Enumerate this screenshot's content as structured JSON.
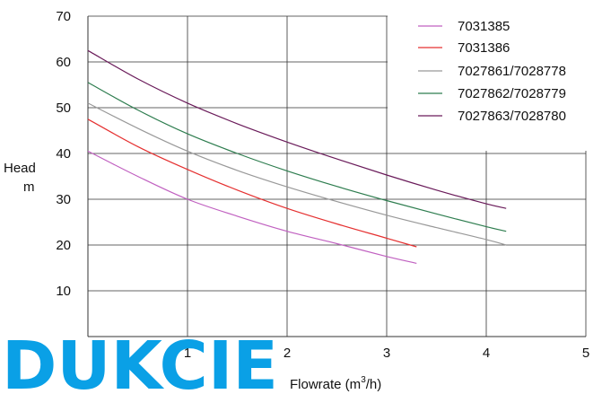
{
  "chart_data": {
    "type": "line",
    "xlabel": "Flowrate (m",
    "xlabel_sup": "3",
    "xlabel_tail": "/h)",
    "ylabel": "Head",
    "yunit": "m",
    "xlim": [
      0,
      5
    ],
    "ylim": [
      0,
      70
    ],
    "x_ticks": [
      1,
      2,
      3,
      4,
      5
    ],
    "y_ticks": [
      10,
      20,
      30,
      40,
      50,
      60,
      70
    ],
    "grid": true,
    "legend_position": "top-right",
    "series": [
      {
        "name": "7031385",
        "color": "#c060c0",
        "x": [
          0,
          0.5,
          1.0,
          1.5,
          2.0,
          2.5,
          3.0,
          3.3
        ],
        "y": [
          40.5,
          35.0,
          30.0,
          26.3,
          23.0,
          20.3,
          17.5,
          16.0
        ]
      },
      {
        "name": "7031386",
        "color": "#e53030",
        "x": [
          0,
          0.5,
          1.0,
          1.5,
          2.0,
          2.5,
          3.0,
          3.3
        ],
        "y": [
          47.5,
          41.5,
          36.5,
          32.0,
          28.0,
          24.6,
          21.5,
          19.6
        ]
      },
      {
        "name": "7027861/7028778",
        "color": "#999999",
        "x": [
          0,
          0.5,
          1.0,
          1.5,
          2.0,
          2.5,
          3.0,
          3.5,
          4.0,
          4.2
        ],
        "y": [
          51.0,
          45.5,
          40.5,
          36.3,
          32.7,
          29.5,
          26.5,
          23.8,
          21.2,
          20.0
        ]
      },
      {
        "name": "7027862/7028779",
        "color": "#2e7d4f",
        "x": [
          0,
          0.5,
          1.0,
          1.5,
          2.0,
          2.5,
          3.0,
          3.5,
          4.0,
          4.2
        ],
        "y": [
          55.5,
          49.5,
          44.3,
          40.0,
          36.2,
          32.8,
          29.7,
          26.8,
          24.0,
          23.0
        ]
      },
      {
        "name": "7027863/7028780",
        "color": "#6a1b5a",
        "x": [
          0,
          0.5,
          1.0,
          1.5,
          2.0,
          2.5,
          3.0,
          3.5,
          4.0,
          4.2
        ],
        "y": [
          62.5,
          56.3,
          51.0,
          46.5,
          42.5,
          38.8,
          35.3,
          32.0,
          29.0,
          28.0
        ]
      }
    ]
  },
  "brand": {
    "text": "DUKCIE",
    "color": "#0aa0e6"
  }
}
